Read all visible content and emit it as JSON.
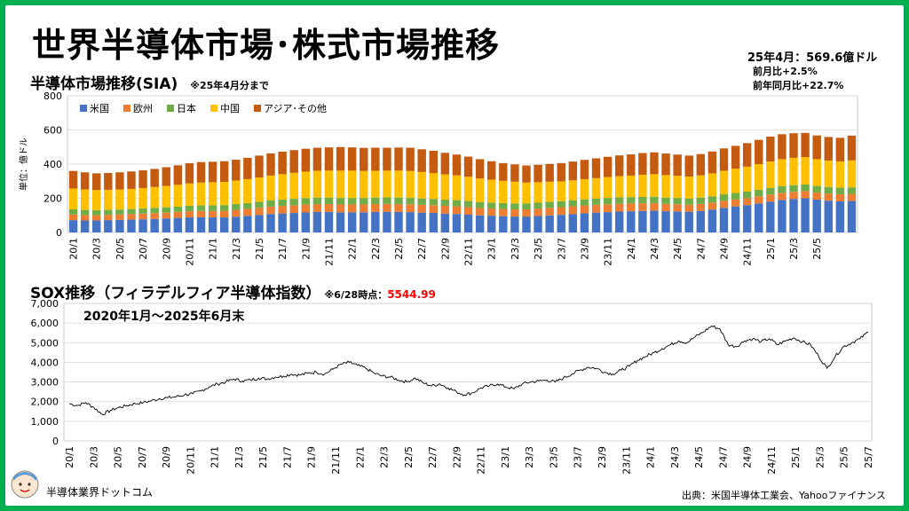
{
  "page": {
    "title": "世界半導体市場･株式市場推移",
    "headline_value": "25年4月：569.6億ドル",
    "mom": "前月比+2.5%",
    "yoy": "前年同月比+22.7%",
    "brand": "半導体業界ドットコム",
    "source": "出典：米国半導体工業会、Yahooファイナンス"
  },
  "colors": {
    "background": "#00b050",
    "us": "#4472c4",
    "europe": "#ed7d31",
    "japan": "#70ad47",
    "china": "#ffc000",
    "asia": "#c55a11",
    "sox_line": "#000000",
    "highlight": "#ff0000"
  },
  "chart_data": [
    {
      "type": "bar",
      "stacked": true,
      "title": "半導体市場推移(SIA)",
      "subtitle": "※25年4月分まで",
      "ylabel": "単位：億ドル",
      "ylim": [
        0,
        800
      ],
      "yticks": [
        0,
        200,
        400,
        600,
        800
      ],
      "grid": true,
      "legend_position": "top-left",
      "x_tick_labels": [
        "20/1",
        "20/3",
        "20/5",
        "20/7",
        "20/9",
        "20/11",
        "21/1",
        "21/3",
        "21/5",
        "21/7",
        "21/9",
        "21/11",
        "22/1",
        "22/3",
        "22/5",
        "22/7",
        "22/9",
        "22/11",
        "23/1",
        "23/3",
        "23/5",
        "23/7",
        "23/9",
        "23/11",
        "24/1",
        "24/3",
        "24/5",
        "24/7",
        "24/9",
        "24/11",
        "25/1",
        "25/3",
        "25/5"
      ],
      "series": [
        {
          "name": "米国",
          "color_key": "us",
          "values": [
            72,
            70,
            70,
            72,
            74,
            75,
            77,
            79,
            82,
            85,
            88,
            89,
            88,
            88,
            92,
            97,
            102,
            108,
            111,
            114,
            117,
            120,
            120,
            118,
            118,
            118,
            120,
            121,
            120,
            119,
            116,
            114,
            110,
            108,
            104,
            100,
            98,
            95,
            93,
            93,
            96,
            100,
            103,
            107,
            112,
            116,
            119,
            122,
            124,
            126,
            128,
            124,
            123,
            121,
            126,
            134,
            144,
            152,
            160,
            170,
            180,
            190,
            196,
            200,
            192,
            186,
            182,
            184
          ]
        },
        {
          "name": "欧州",
          "color_key": "europe",
          "values": [
            33,
            32,
            31,
            31,
            31,
            32,
            33,
            34,
            34,
            35,
            36,
            37,
            38,
            39,
            40,
            41,
            42,
            43,
            44,
            45,
            46,
            46,
            46,
            46,
            46,
            46,
            46,
            46,
            46,
            46,
            46,
            46,
            46,
            45,
            44,
            43,
            42,
            42,
            42,
            42,
            43,
            44,
            45,
            46,
            46,
            46,
            46,
            46,
            46,
            45,
            44,
            43,
            42,
            41,
            41,
            41,
            41,
            41,
            41,
            42,
            42,
            42,
            42,
            42,
            42,
            42,
            42,
            42
          ]
        },
        {
          "name": "日本",
          "color_key": "japan",
          "values": [
            30,
            30,
            29,
            29,
            29,
            30,
            30,
            31,
            31,
            31,
            32,
            33,
            33,
            33,
            34,
            34,
            35,
            36,
            37,
            38,
            38,
            38,
            38,
            38,
            38,
            38,
            38,
            38,
            38,
            37,
            37,
            36,
            36,
            36,
            36,
            35,
            35,
            35,
            35,
            35,
            35,
            35,
            35,
            36,
            36,
            36,
            37,
            37,
            37,
            37,
            37,
            37,
            37,
            37,
            37,
            37,
            38,
            38,
            38,
            38,
            38,
            39,
            39,
            39,
            38,
            38,
            38,
            38
          ]
        },
        {
          "name": "中国",
          "color_key": "china",
          "values": [
            122,
            120,
            118,
            118,
            118,
            118,
            120,
            122,
            125,
            128,
            131,
            133,
            135,
            136,
            138,
            140,
            143,
            146,
            149,
            152,
            155,
            157,
            158,
            160,
            160,
            158,
            157,
            157,
            158,
            158,
            155,
            152,
            148,
            145,
            142,
            138,
            134,
            130,
            127,
            122,
            120,
            118,
            116,
            116,
            118,
            120,
            122,
            124,
            126,
            130,
            132,
            132,
            130,
            128,
            130,
            134,
            138,
            142,
            146,
            150,
            155,
            158,
            160,
            160,
            157,
            155,
            154,
            158
          ]
        },
        {
          "name": "アジア･その他",
          "color_key": "asia",
          "values": [
            103,
            100,
            98,
            98,
            100,
            102,
            104,
            106,
            110,
            114,
            118,
            120,
            120,
            121,
            122,
            125,
            128,
            130,
            132,
            133,
            134,
            135,
            136,
            138,
            136,
            135,
            135,
            134,
            135,
            136,
            133,
            130,
            126,
            122,
            118,
            113,
            108,
            104,
            101,
            100,
            102,
            104,
            107,
            110,
            113,
            116,
            119,
            122,
            124,
            127,
            128,
            126,
            124,
            123,
            125,
            128,
            131,
            134,
            138,
            142,
            146,
            146,
            144,
            142,
            139,
            138,
            138,
            145
          ]
        }
      ]
    },
    {
      "type": "line",
      "title": "SOX推移（フィラデルフィア半導体指数）",
      "note": "※6/28時点：",
      "last_value_label": "5544.99",
      "annotation": "2020年1月～2025年6月末",
      "ylim": [
        0,
        7000
      ],
      "yticks": [
        0,
        1000,
        2000,
        3000,
        4000,
        5000,
        6000,
        7000
      ],
      "ytick_labels": [
        "0",
        "1,000",
        "2,000",
        "3,000",
        "4,000",
        "5,000",
        "6,000",
        "7,000"
      ],
      "grid": true,
      "x_tick_labels": [
        "20/1",
        "20/3",
        "20/5",
        "20/7",
        "20/9",
        "20/11",
        "21/1",
        "21/3",
        "21/5",
        "21/7",
        "21/9",
        "21/11",
        "22/1",
        "22/3",
        "22/5",
        "22/7",
        "22/9",
        "22/11",
        "23/1",
        "23/3",
        "23/5",
        "23/7",
        "23/9",
        "23/11",
        "24/1",
        "24/3",
        "24/5",
        "24/7",
        "24/9",
        "24/11",
        "25/1",
        "25/3",
        "25/5",
        "25/7"
      ],
      "series": [
        {
          "name": "SOX",
          "values": [
            1900,
            1800,
            1950,
            1700,
            1350,
            1550,
            1700,
            1800,
            1900,
            1950,
            2050,
            2150,
            2200,
            2250,
            2350,
            2400,
            2550,
            2750,
            2900,
            3000,
            3150,
            3050,
            3100,
            3200,
            3150,
            3250,
            3300,
            3400,
            3350,
            3450,
            3500,
            3400,
            3650,
            3900,
            4000,
            3850,
            3700,
            3450,
            3300,
            3250,
            3100,
            3000,
            3200,
            2950,
            2800,
            2900,
            2700,
            2500,
            2350,
            2450,
            2700,
            2800,
            2900,
            2750,
            2650,
            2900,
            3000,
            3050,
            3100,
            3000,
            3200,
            3400,
            3600,
            3750,
            3700,
            3500,
            3400,
            3600,
            3800,
            4100,
            4300,
            4500,
            4700,
            4900,
            5100,
            5000,
            5300,
            5550,
            5850,
            5700,
            4900,
            4800,
            5100,
            5200,
            5050,
            5200,
            4900,
            5100,
            5250,
            5050,
            4900,
            4300,
            3700,
            4300,
            4800,
            5000,
            5200,
            5544.99
          ]
        }
      ]
    }
  ]
}
